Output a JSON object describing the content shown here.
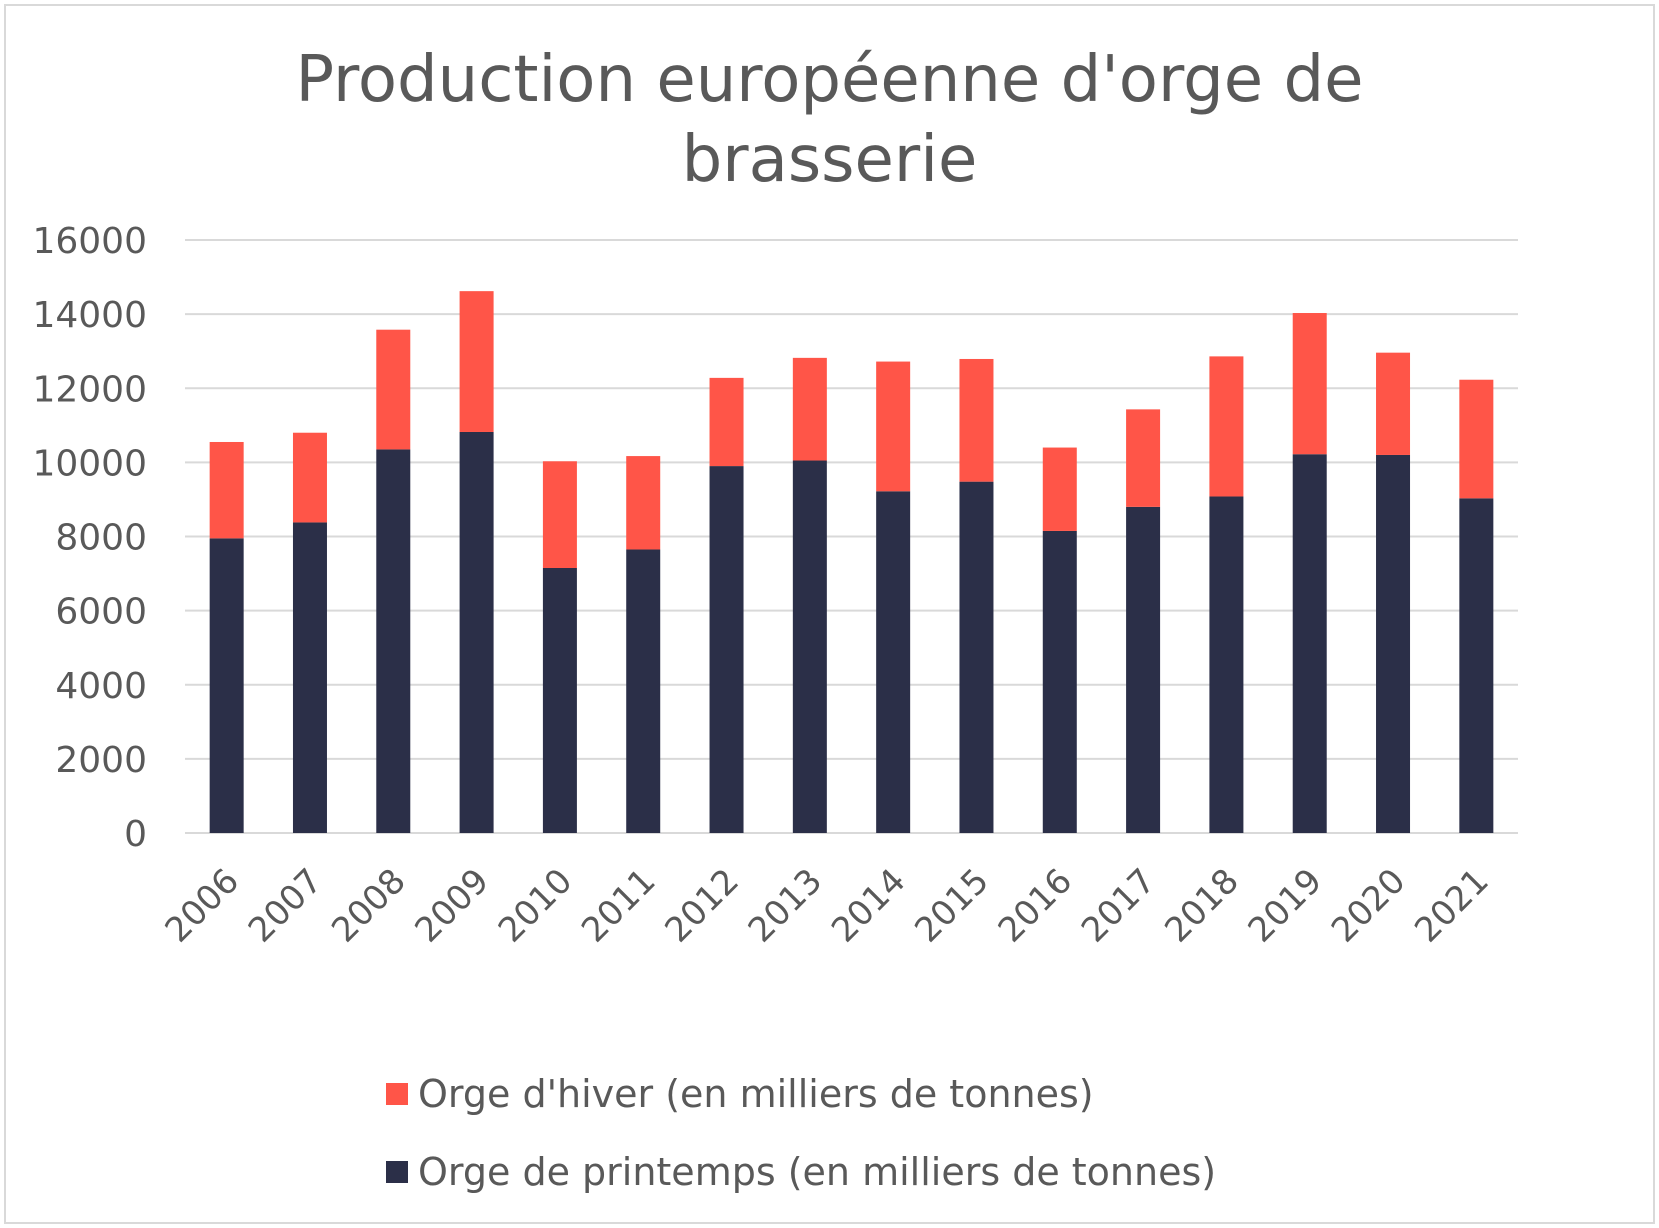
{
  "chart_data": {
    "type": "bar",
    "stacked": true,
    "title": "Production européenne d'orge de brasserie",
    "categories": [
      "2006",
      "2007",
      "2008",
      "2009",
      "2010",
      "2011",
      "2012",
      "2013",
      "2014",
      "2015",
      "2016",
      "2017",
      "2018",
      "2019",
      "2020",
      "2021"
    ],
    "series": [
      {
        "name": "Orge de printemps (en milliers de tonnes)",
        "color": "#2b2f48",
        "values": [
          7950,
          8380,
          10350,
          10820,
          7150,
          7650,
          9900,
          10050,
          9220,
          9480,
          8150,
          8800,
          9080,
          10220,
          10200,
          9030
        ]
      },
      {
        "name": "Orge d'hiver (en milliers de tonnes)",
        "color": "#ff5548",
        "values": [
          2600,
          2420,
          3230,
          3800,
          2880,
          2520,
          2380,
          2770,
          3500,
          3310,
          2250,
          2630,
          3780,
          3810,
          2760,
          3200
        ]
      }
    ],
    "y_ticks": [
      "0",
      "2000",
      "4000",
      "6000",
      "8000",
      "10000",
      "12000",
      "14000",
      "16000"
    ],
    "ylim": [
      0,
      16000
    ],
    "grid": true,
    "legend_position": "bottom",
    "legend_order": [
      "Orge d'hiver (en milliers de tonnes)",
      "Orge de printemps (en milliers de tonnes)"
    ],
    "colors": {
      "text": "#595959",
      "grid": "#d9d9d9"
    }
  }
}
